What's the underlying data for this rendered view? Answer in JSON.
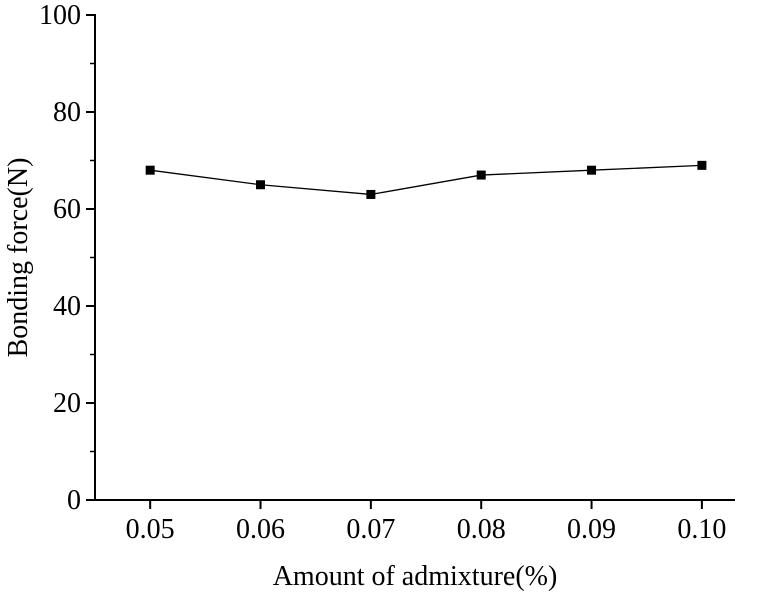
{
  "chart_data": {
    "type": "line",
    "title": "",
    "xlabel": "Amount of admixture(%)",
    "ylabel": "Bonding force(N)",
    "x": [
      0.05,
      0.06,
      0.07,
      0.08,
      0.09,
      0.1
    ],
    "values": [
      68,
      65,
      63,
      67,
      68,
      69
    ],
    "xticks": [
      "0.05",
      "0.06",
      "0.07",
      "0.08",
      "0.09",
      "0.10"
    ],
    "yticks": [
      0,
      20,
      40,
      60,
      80,
      100
    ],
    "y_minor_ticks": [
      10,
      30,
      50,
      70,
      90
    ],
    "xlim": [
      0.045,
      0.103
    ],
    "ylim": [
      0,
      100
    ],
    "grid": "off",
    "legend": "none",
    "marker": "square",
    "line_color": "#000000",
    "marker_color": "#000000",
    "axis_color": "#000000",
    "background": "#ffffff"
  }
}
